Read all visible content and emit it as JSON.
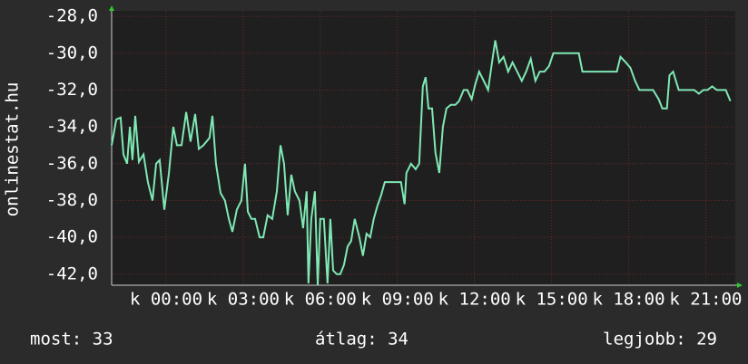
{
  "chart_data": {
    "type": "line",
    "y_label": "onlinestat.hu",
    "x": [
      -2.12,
      -1.94,
      -1.77,
      -1.66,
      -1.52,
      -1.41,
      -1.31,
      -1.2,
      -1.06,
      -0.88,
      -0.71,
      -0.53,
      -0.39,
      -0.25,
      -0.07,
      0.11,
      0.28,
      0.42,
      0.6,
      0.78,
      0.95,
      1.13,
      1.27,
      1.45,
      1.69,
      1.8,
      1.94,
      2.12,
      2.29,
      2.44,
      2.58,
      2.75,
      2.93,
      3.07,
      3.18,
      3.32,
      3.46,
      3.64,
      3.78,
      3.95,
      4.13,
      4.31,
      4.45,
      4.59,
      4.73,
      4.87,
      5.01,
      5.19,
      5.33,
      5.47,
      5.54,
      5.65,
      5.79,
      5.9,
      6.0,
      6.14,
      6.28,
      6.39,
      6.5,
      6.64,
      6.78,
      6.92,
      7.06,
      7.2,
      7.34,
      7.52,
      7.66,
      7.8,
      7.94,
      8.08,
      8.22,
      8.37,
      8.51,
      8.72,
      8.97,
      9.14,
      9.28,
      9.35,
      9.53,
      9.71,
      9.85,
      9.99,
      10.1,
      10.21,
      10.35,
      10.48,
      10.63,
      10.77,
      10.91,
      11.08,
      11.26,
      11.4,
      11.58,
      11.72,
      11.89,
      12.03,
      12.18,
      12.36,
      12.53,
      12.67,
      12.81,
      12.96,
      13.13,
      13.31,
      13.48,
      13.66,
      13.84,
      14.01,
      14.19,
      14.37,
      14.54,
      14.72,
      14.9,
      15.07,
      15.43,
      15.78,
      16.06,
      16.2,
      16.84,
      17.54,
      17.68,
      17.89,
      18.07,
      18.25,
      18.42,
      18.6,
      18.95,
      19.17,
      19.31,
      19.49,
      19.59,
      19.73,
      19.84,
      19.95,
      20.2,
      20.55,
      20.73,
      20.91,
      21.07,
      21.25,
      21.43,
      21.78,
      21.96
    ],
    "series": [
      {
        "name": "onlinestat.hu",
        "color": "#7fe8b4",
        "values": [
          -35,
          -33.6,
          -33.5,
          -35.5,
          -36,
          -34,
          -35.8,
          -33.4,
          -35.9,
          -35.5,
          -37,
          -38,
          -36,
          -35.8,
          -38.5,
          -36.5,
          -34,
          -35,
          -35,
          -33.2,
          -34.8,
          -33.3,
          -35.2,
          -35,
          -34.6,
          -33.4,
          -36,
          -37.6,
          -38,
          -39,
          -39.7,
          -38.5,
          -38,
          -36,
          -38.6,
          -39,
          -39,
          -40,
          -40,
          -38.8,
          -39,
          -37.5,
          -35,
          -36,
          -38.8,
          -36.6,
          -37.5,
          -38,
          -39.5,
          -37.5,
          -42.5,
          -39,
          -37.5,
          -42.6,
          -39,
          -39,
          -42.5,
          -39,
          -41.8,
          -42,
          -42,
          -41.5,
          -40.5,
          -40.2,
          -39,
          -40,
          -41,
          -39.8,
          -40,
          -39,
          -38.3,
          -37.7,
          -37,
          -37,
          -37,
          -37,
          -38.2,
          -36.5,
          -36,
          -36.3,
          -36,
          -31.8,
          -31.3,
          -33,
          -33,
          -35.4,
          -36.5,
          -34,
          -33,
          -32.8,
          -32.8,
          -32.6,
          -32,
          -32,
          -32.5,
          -31.7,
          -31,
          -31.5,
          -32,
          -30.6,
          -29.3,
          -30.5,
          -30.2,
          -31,
          -30.5,
          -31,
          -31.5,
          -31,
          -30.3,
          -31.5,
          -31,
          -31,
          -30.7,
          -30,
          -30,
          -30,
          -30,
          -31,
          -31,
          -31,
          -30.2,
          -30.5,
          -30.8,
          -31.5,
          -32,
          -32,
          -32,
          -32.5,
          -33,
          -33,
          -31.2,
          -31,
          -31.5,
          -32,
          -32,
          -32,
          -32.2,
          -32,
          -32,
          -31.8,
          -32,
          -32,
          -32.6
        ]
      }
    ],
    "xlim": [
      -2.12,
      22.15
    ],
    "xticks": [
      {
        "value": 0,
        "label": "k 00:00"
      },
      {
        "value": 3,
        "label": "k 03:00"
      },
      {
        "value": 6,
        "label": "k 06:00"
      },
      {
        "value": 9,
        "label": "k 09:00"
      },
      {
        "value": 12,
        "label": "k 12:00"
      },
      {
        "value": 15,
        "label": "k 15:00"
      },
      {
        "value": 18,
        "label": "k 18:00"
      },
      {
        "value": 21,
        "label": "k 21:00"
      }
    ],
    "ylim": [
      -42.6,
      -27.7
    ],
    "yticks": [
      {
        "value": -28,
        "label": "-28,0"
      },
      {
        "value": -30,
        "label": "-30,0"
      },
      {
        "value": -32,
        "label": "-32,0"
      },
      {
        "value": -34,
        "label": "-34,0"
      },
      {
        "value": -36,
        "label": "-36,0"
      },
      {
        "value": -38,
        "label": "-38,0"
      },
      {
        "value": -40,
        "label": "-40,0"
      },
      {
        "value": -42,
        "label": "-42,0"
      }
    ],
    "grid": true,
    "annotations": [
      "most: 33",
      "átlag: 34",
      "legjobb: 29"
    ]
  }
}
